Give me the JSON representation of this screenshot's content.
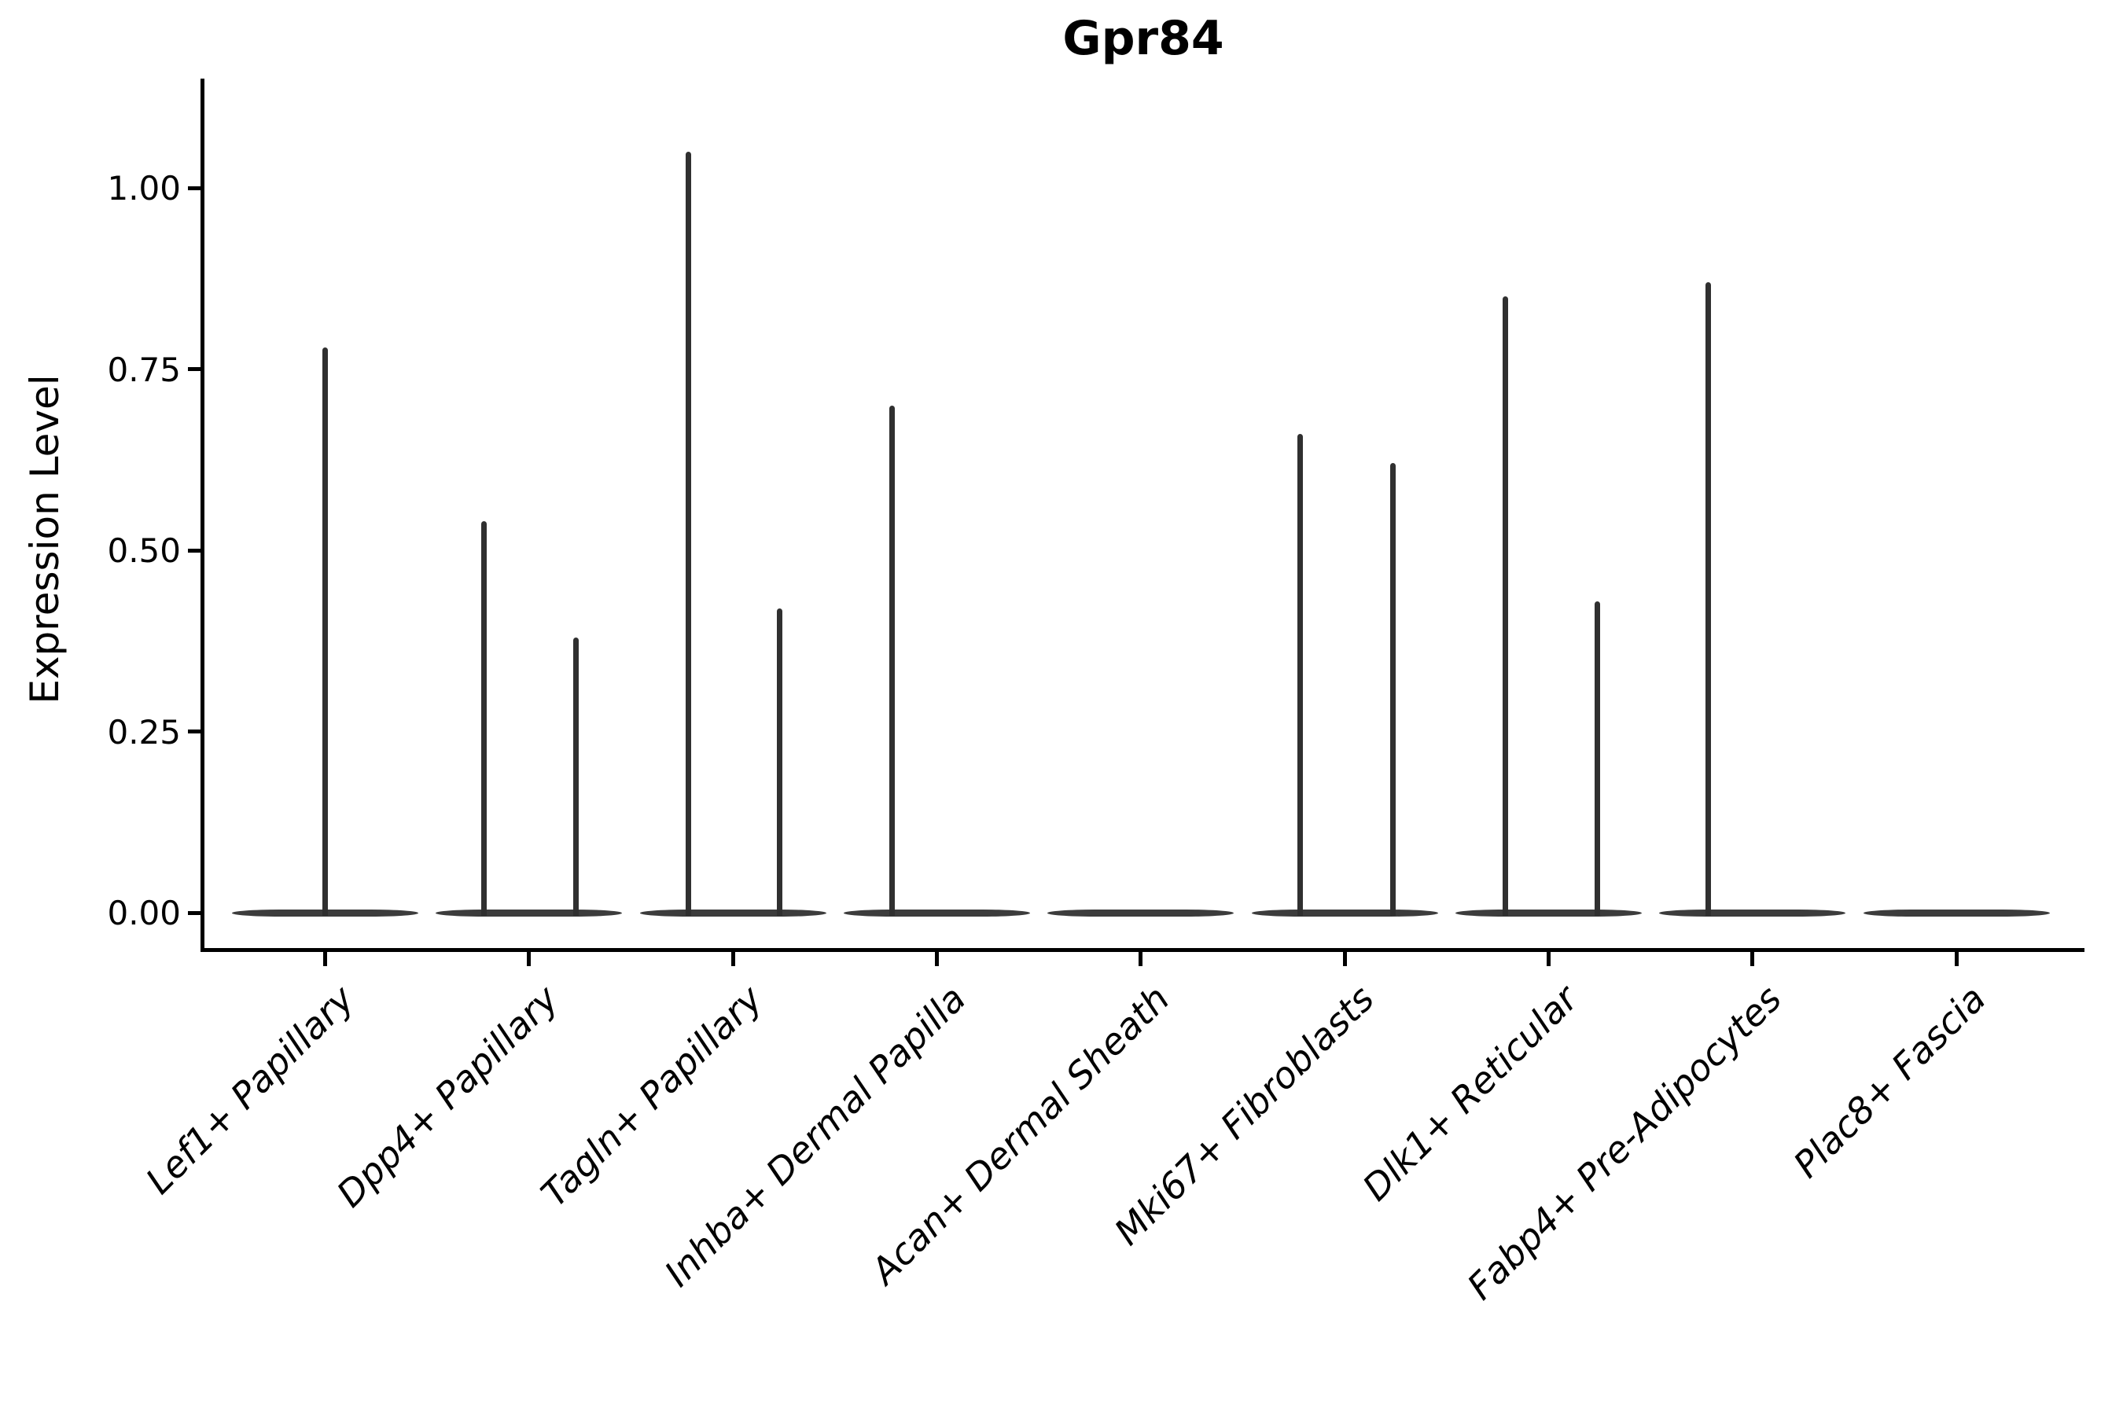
{
  "chart_data": {
    "type": "violin",
    "title": "Gpr84",
    "ylabel": "Expression Level",
    "xlabel": "",
    "legend": "none",
    "grid": false,
    "background": "#ffffff",
    "ink_color": "#000000",
    "violin_color": "#3c3c3c",
    "ylim": [
      -0.05,
      1.15
    ],
    "y_ticks": [
      1.0,
      0.75,
      0.5,
      0.25,
      0.0
    ],
    "y_tick_labels": [
      "1.00",
      "0.75",
      "0.50",
      "0.25",
      "0.00"
    ],
    "categories": [
      "Lef1+ Papillary",
      "Dpp4+ Papillary",
      "Tagln+ Papillary",
      "Inhba+ Dermal Papilla",
      "Acan+ Dermal Sheath",
      "Mki67+ Fibroblasts",
      "Dlk1+ Reticular",
      "Fabp4+ Pre-Adipocytes",
      "Plac8+ Fascia"
    ],
    "violins": [
      {
        "category": "Lef1+ Papillary",
        "baseline_value": 0.0,
        "spikes": [
          {
            "dx": 0.0,
            "value": 0.78
          }
        ]
      },
      {
        "category": "Dpp4+ Papillary",
        "baseline_value": 0.0,
        "spikes": [
          {
            "dx": -0.22,
            "value": 0.54
          },
          {
            "dx": 0.23,
            "value": 0.38
          }
        ]
      },
      {
        "category": "Tagln+ Papillary",
        "baseline_value": 0.0,
        "spikes": [
          {
            "dx": -0.22,
            "value": 1.05
          },
          {
            "dx": 0.23,
            "value": 0.42
          }
        ]
      },
      {
        "category": "Inhba+ Dermal Papilla",
        "baseline_value": 0.0,
        "spikes": [
          {
            "dx": -0.22,
            "value": 0.7
          }
        ]
      },
      {
        "category": "Acan+ Dermal Sheath",
        "baseline_value": 0.0,
        "spikes": []
      },
      {
        "category": "Mki67+ Fibroblasts",
        "baseline_value": 0.0,
        "spikes": [
          {
            "dx": -0.22,
            "value": 0.66
          },
          {
            "dx": 0.235,
            "value": 0.62
          }
        ]
      },
      {
        "category": "Dlk1+ Reticular",
        "baseline_value": 0.0,
        "spikes": [
          {
            "dx": -0.21,
            "value": 0.85
          },
          {
            "dx": 0.24,
            "value": 0.43
          }
        ]
      },
      {
        "category": "Fabp4+ Pre-Adipocytes",
        "baseline_value": 0.0,
        "spikes": [
          {
            "dx": -0.215,
            "value": 0.87
          }
        ]
      },
      {
        "category": "Plac8+ Fascia",
        "baseline_value": 0.0,
        "spikes": []
      }
    ]
  }
}
